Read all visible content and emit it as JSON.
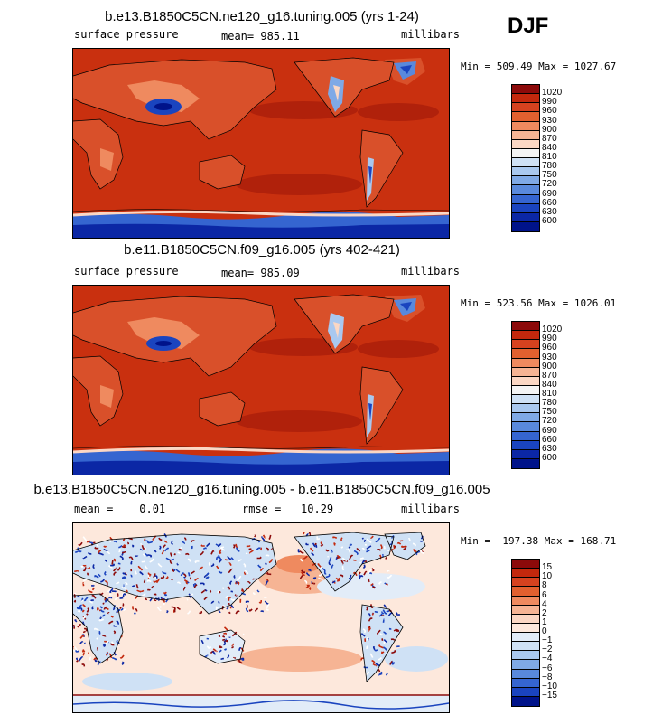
{
  "season": "DJF",
  "panels": [
    {
      "title": "b.e13.B1850C5CN.ne120_g16.tuning.005 (yrs 1-24)",
      "left": "surface pressure",
      "mid": "mean= 985.11",
      "right": "millibars",
      "minmax": "Min = 509.49 Max = 1027.67",
      "levels": [
        "1020",
        "990",
        "960",
        "930",
        "900",
        "870",
        "840",
        "810",
        "780",
        "750",
        "720",
        "690",
        "660",
        "630",
        "600"
      ],
      "colors": [
        "#8c0a0a",
        "#c3280d",
        "#d6421f",
        "#e2602f",
        "#ef8a5f",
        "#f6b494",
        "#fbd7c4",
        "#f4f4f4",
        "#cfe1f5",
        "#a9c8ef",
        "#7fa9e6",
        "#5989dc",
        "#3565d0",
        "#1a44bf",
        "#0b27a5",
        "#00138a"
      ]
    },
    {
      "title": "b.e11.B1850C5CN.f09_g16.005 (yrs 402-421)",
      "left": "surface pressure",
      "mid": "mean= 985.09",
      "right": "millibars",
      "minmax": "Min = 523.56 Max = 1026.01",
      "levels": [
        "1020",
        "990",
        "960",
        "930",
        "900",
        "870",
        "840",
        "810",
        "780",
        "750",
        "720",
        "690",
        "660",
        "630",
        "600"
      ],
      "colors": [
        "#8c0a0a",
        "#c3280d",
        "#d6421f",
        "#e2602f",
        "#ef8a5f",
        "#f6b494",
        "#fbd7c4",
        "#f4f4f4",
        "#cfe1f5",
        "#a9c8ef",
        "#7fa9e6",
        "#5989dc",
        "#3565d0",
        "#1a44bf",
        "#0b27a5",
        "#00138a"
      ]
    },
    {
      "title": "b.e13.B1850C5CN.ne120_g16.tuning.005 - b.e11.B1850C5CN.f09_g16.005",
      "left": "mean =    0.01",
      "mid": "rmse =   10.29",
      "right": "millibars",
      "minmax": "Min = −197.38 Max = 168.71",
      "levels": [
        "15",
        "10",
        "8",
        "6",
        "4",
        "2",
        "1",
        "0",
        "−1",
        "−2",
        "−4",
        "−6",
        "−8",
        "−10",
        "−15"
      ],
      "colors": [
        "#8c0a0a",
        "#c3280d",
        "#d6421f",
        "#e2602f",
        "#ef8a5f",
        "#f6b494",
        "#fbd7c4",
        "#fde8dc",
        "#e2ecf8",
        "#cfe1f5",
        "#a9c8ef",
        "#7fa9e6",
        "#5989dc",
        "#3565d0",
        "#1a44bf",
        "#00138a"
      ]
    }
  ]
}
